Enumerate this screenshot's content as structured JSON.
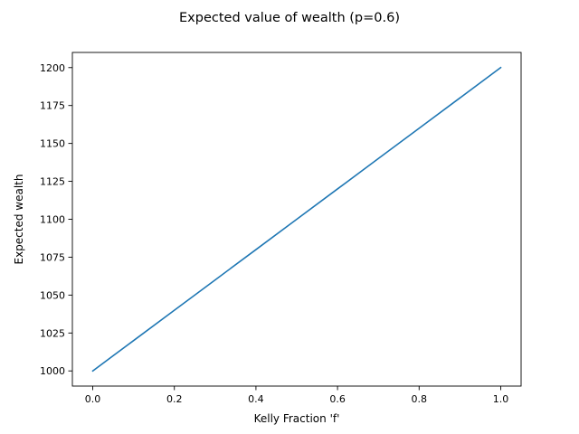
{
  "chart_data": {
    "type": "line",
    "title": "Expected value of wealth (p=0.6)",
    "xlabel": "Kelly Fraction 'f'",
    "ylabel": "Expected wealth",
    "xlim": [
      -0.05,
      1.05
    ],
    "ylim": [
      990,
      1210
    ],
    "xticks": [
      0.0,
      0.2,
      0.4,
      0.6,
      0.8,
      1.0
    ],
    "xtick_labels": [
      "0.0",
      "0.2",
      "0.4",
      "0.6",
      "0.8",
      "1.0"
    ],
    "yticks": [
      1000,
      1025,
      1050,
      1075,
      1100,
      1125,
      1150,
      1175,
      1200
    ],
    "ytick_labels": [
      "1000",
      "1025",
      "1050",
      "1075",
      "1100",
      "1125",
      "1150",
      "1175",
      "1200"
    ],
    "grid": false,
    "series": [
      {
        "color": "#1f77b4",
        "x": [
          0.0,
          0.1,
          0.2,
          0.3,
          0.4,
          0.5,
          0.6,
          0.7,
          0.8,
          0.9,
          1.0
        ],
        "y": [
          1000,
          1020,
          1040,
          1060,
          1080,
          1100,
          1120,
          1140,
          1160,
          1180,
          1200
        ]
      }
    ]
  }
}
